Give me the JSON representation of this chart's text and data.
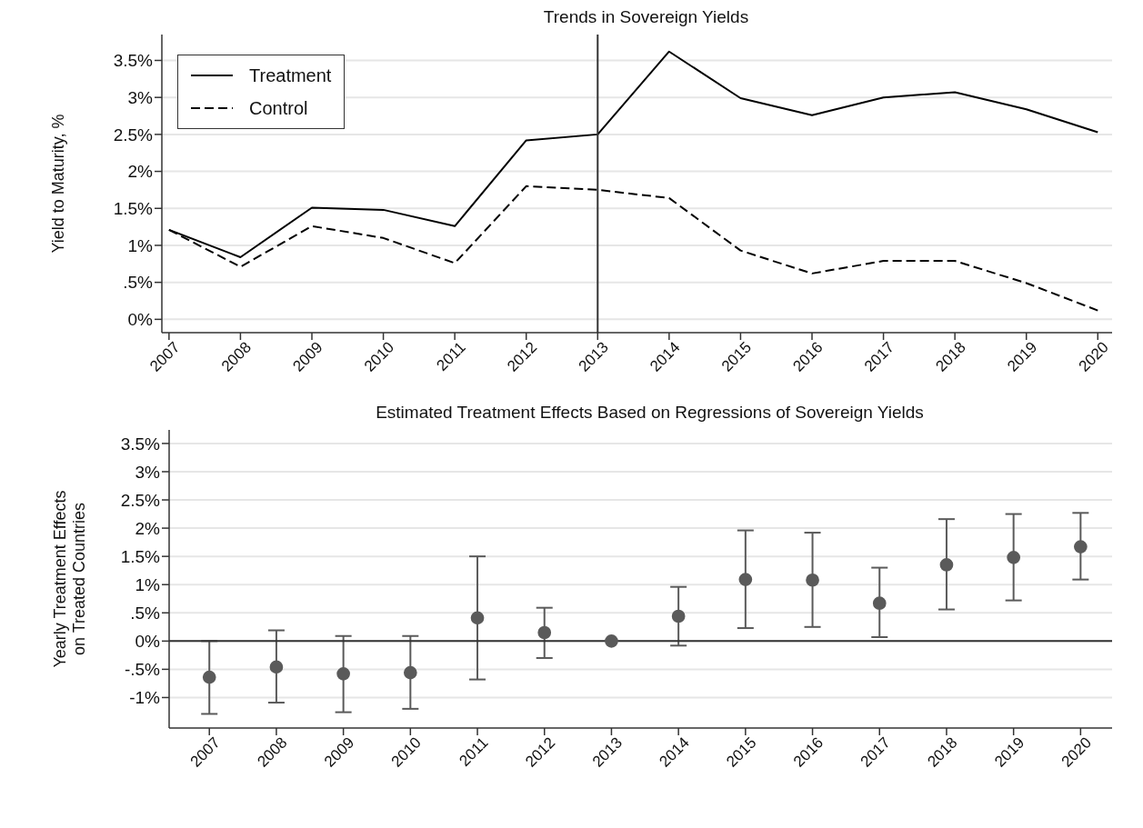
{
  "chart_data": [
    {
      "type": "line",
      "title": "Trends in Sovereign Yields",
      "ylabel": "Yield to Maturity, %",
      "x": [
        2007,
        2008,
        2009,
        2010,
        2011,
        2012,
        2013,
        2014,
        2015,
        2016,
        2017,
        2018,
        2019,
        2020
      ],
      "series": [
        {
          "name": "Treatment",
          "color": "#000000",
          "line_style": "solid",
          "values": [
            1.21,
            0.84,
            1.51,
            1.48,
            1.26,
            2.42,
            2.5,
            3.62,
            2.99,
            2.76,
            3.0,
            3.07,
            2.84,
            2.53
          ]
        },
        {
          "name": "Control",
          "color": "#000000",
          "line_style": "dashed",
          "values": [
            1.21,
            0.71,
            1.26,
            1.1,
            0.76,
            1.8,
            1.75,
            1.64,
            0.93,
            0.62,
            0.79,
            0.79,
            0.49,
            0.12
          ]
        }
      ],
      "xlim": [
        2006.9,
        2020.2
      ],
      "xticks": [
        2007,
        2008,
        2009,
        2010,
        2011,
        2012,
        2013,
        2014,
        2015,
        2016,
        2017,
        2018,
        2019,
        2020
      ],
      "ylim": [
        -0.18,
        3.85
      ],
      "yticks": [
        {
          "value": 0,
          "label": "0%"
        },
        {
          "value": 0.5,
          "label": ".5%"
        },
        {
          "value": 1,
          "label": "1%"
        },
        {
          "value": 1.5,
          "label": "1.5%"
        },
        {
          "value": 2,
          "label": "2%"
        },
        {
          "value": 2.5,
          "label": "2.5%"
        },
        {
          "value": 3,
          "label": "3%"
        },
        {
          "value": 3.5,
          "label": "3.5%"
        }
      ],
      "ref_lines": [
        {
          "axis": "x",
          "value": 2013,
          "color": "#333333"
        }
      ],
      "grid": "y",
      "legend": "top left",
      "marker": "none"
    },
    {
      "type": "scatter",
      "title": "Estimated Treatment Effects Based on Regressions of Sovereign Yields",
      "ylabel": "Yearly Treatment Effects\non Treated Countries",
      "x": [
        2007,
        2008,
        2009,
        2010,
        2011,
        2012,
        2013,
        2014,
        2015,
        2016,
        2017,
        2018,
        2019,
        2020
      ],
      "series": [
        {
          "color": "#5a5a5a",
          "values": [
            -0.64,
            -0.46,
            -0.58,
            -0.56,
            0.41,
            0.15,
            0,
            0.44,
            1.09,
            1.08,
            0.67,
            1.35,
            1.48,
            1.67
          ],
          "errors": [
            [
              -1.29,
              0.0
            ],
            [
              -1.09,
              0.19
            ],
            [
              -1.26,
              0.09
            ],
            [
              -1.2,
              0.09
            ],
            [
              -0.68,
              1.5
            ],
            [
              -0.3,
              0.59
            ],
            null,
            [
              -0.08,
              0.96
            ],
            [
              0.23,
              1.96
            ],
            [
              0.25,
              1.92
            ],
            [
              0.07,
              1.3
            ],
            [
              0.56,
              2.16
            ],
            [
              0.72,
              2.25
            ],
            [
              1.09,
              2.27
            ]
          ]
        }
      ],
      "xlim": [
        2006.4,
        2020.47
      ],
      "xticks": [
        2007,
        2008,
        2009,
        2010,
        2011,
        2012,
        2013,
        2014,
        2015,
        2016,
        2017,
        2018,
        2019,
        2020
      ],
      "ylim": [
        -1.54,
        3.74
      ],
      "yticks": [
        {
          "value": -1,
          "label": "-1%"
        },
        {
          "value": -0.5,
          "label": "-.5%"
        },
        {
          "value": 0,
          "label": "0%"
        },
        {
          "value": 0.5,
          "label": ".5%"
        },
        {
          "value": 1,
          "label": "1%"
        },
        {
          "value": 1.5,
          "label": "1.5%"
        },
        {
          "value": 2,
          "label": "2%"
        },
        {
          "value": 2.5,
          "label": "2.5%"
        },
        {
          "value": 3,
          "label": "3%"
        },
        {
          "value": 3.5,
          "label": "3.5%"
        }
      ],
      "ref_lines": [
        {
          "axis": "y",
          "value": 0,
          "color": "#333333"
        }
      ],
      "grid": "y",
      "marker": "circle"
    }
  ]
}
